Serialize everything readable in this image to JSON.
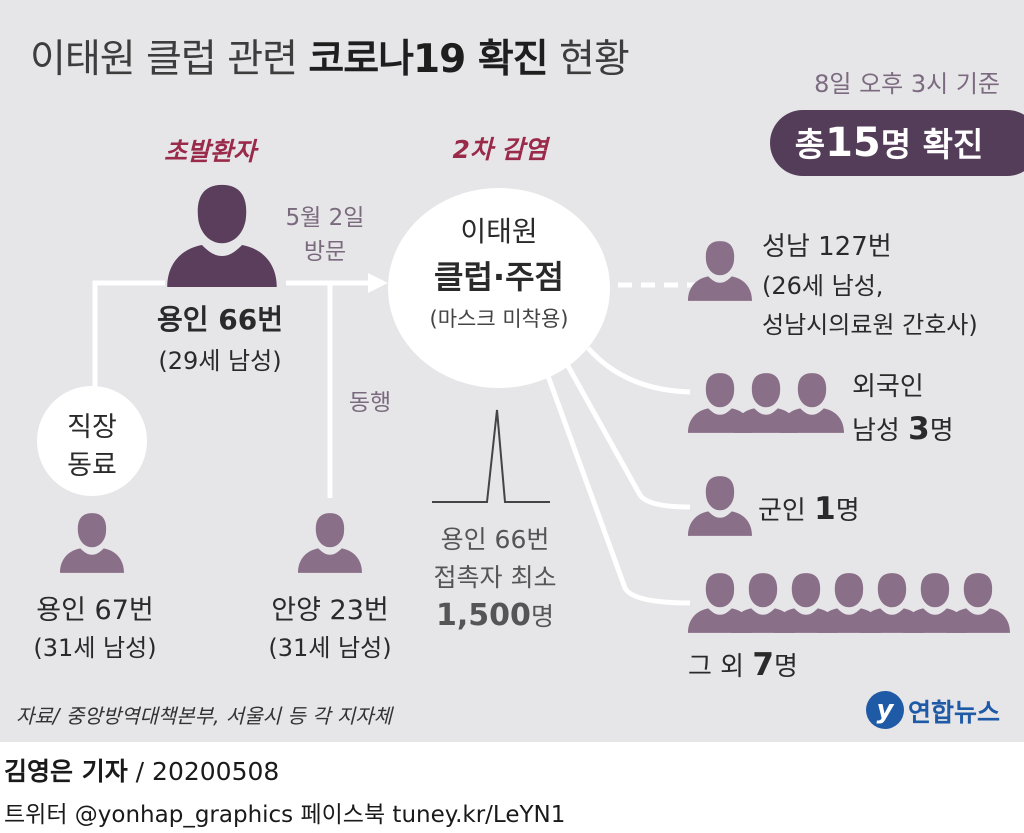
{
  "title": {
    "part1": "이태원 클럽 관련 ",
    "part2": "코로나19 확진",
    "part3": " 현황"
  },
  "basis": "8일 오후 3시 기준",
  "total": {
    "prefix": "총",
    "count": "15",
    "suffix": "명 확진"
  },
  "patient_zero": {
    "label": "초발환자",
    "name": "용인 66번",
    "detail": "(29세 남성)"
  },
  "visit": {
    "line1": "5월 2일",
    "line2": "방문"
  },
  "together": "동행",
  "secondary_label": "2차 감염",
  "club": {
    "line1": "이태원",
    "line2": "클럽·주점",
    "line3": "(마스크 미착용)"
  },
  "coworker": {
    "line1": "직장",
    "line2": "동료"
  },
  "yongin67": {
    "name": "용인 67번",
    "detail": "(31세 남성)"
  },
  "anyang23": {
    "name": "안양 23번",
    "detail": "(31세 남성)"
  },
  "contacts": {
    "line1": "용인 66번",
    "line2": "접촉자 최소",
    "count": "1,500",
    "unit": "명"
  },
  "seongnam": {
    "line1": "성남 127번",
    "line2": "(26세 남성,",
    "line3": "성남시의료원 간호사)"
  },
  "foreign": {
    "line1": "외국인",
    "line2_prefix": "남성 ",
    "count": "3",
    "unit": "명",
    "icon_count": 3
  },
  "soldier": {
    "prefix": "군인 ",
    "count": "1",
    "unit": "명",
    "icon_count": 1
  },
  "others": {
    "prefix": "그 외 ",
    "count": "7",
    "unit": "명",
    "icon_count": 7
  },
  "source": "자료/ 중앙방역대책본부, 서울시 등 각 지자체",
  "logo": {
    "mark": "y",
    "text": "연합뉴스"
  },
  "credit": {
    "reporter": "김영은 기자",
    "separator": " / ",
    "date": "20200508"
  },
  "social": "트위터 @yonhap_graphics  페이스북 tuney.kr/LeYN1",
  "colors": {
    "background": "#e6e5e8",
    "person_dark": "#5a3e5c",
    "person_light": "#8a6f88",
    "accent_red": "#9a2a4a",
    "total_box": "#543d58",
    "logo_blue": "#1f5aa6"
  }
}
